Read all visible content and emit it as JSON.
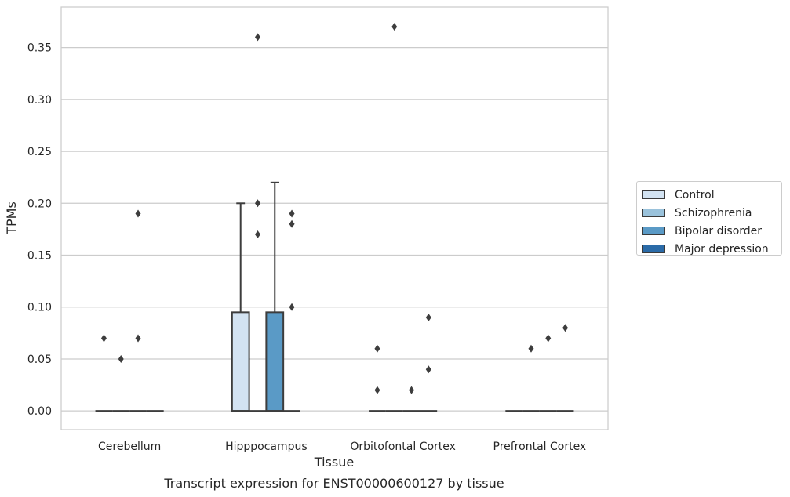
{
  "chart_data": {
    "type": "boxplot",
    "title": "Transcript expression for ENST00000600127 by tissue",
    "xlabel": "Tissue",
    "ylabel": "TPMs",
    "ylim": [
      -0.018,
      0.389
    ],
    "yticks": [
      "0.00",
      "0.05",
      "0.10",
      "0.15",
      "0.20",
      "0.25",
      "0.30",
      "0.35"
    ],
    "ytick_values": [
      0,
      0.05,
      0.1,
      0.15,
      0.2,
      0.25,
      0.3,
      0.35
    ],
    "grid": true,
    "legend_position": "right",
    "categories": [
      "Cerebellum",
      "Hipppocampus",
      "Orbitofontal Cortex",
      "Prefrontal Cortex"
    ],
    "series": [
      {
        "name": "Control",
        "color": "#d3e3f2",
        "boxes": [
          {
            "category": "Cerebellum",
            "q1": 0,
            "median": 0,
            "q3": 0,
            "whislo": 0,
            "whishi": 0,
            "fliers": [
              0.07
            ]
          },
          {
            "category": "Hipppocampus",
            "q1": 0,
            "median": 0,
            "q3": 0.095,
            "whislo": 0,
            "whishi": 0.2,
            "fliers": []
          },
          {
            "category": "Orbitofontal Cortex",
            "q1": 0,
            "median": 0,
            "q3": 0,
            "whislo": 0,
            "whishi": 0,
            "fliers": [
              0.06,
              0.02
            ]
          },
          {
            "category": "Prefrontal Cortex",
            "q1": 0,
            "median": 0,
            "q3": 0,
            "whislo": 0,
            "whishi": 0,
            "fliers": []
          }
        ]
      },
      {
        "name": "Schizophrenia",
        "color": "#9ac2db",
        "boxes": [
          {
            "category": "Cerebellum",
            "q1": 0,
            "median": 0,
            "q3": 0,
            "whislo": 0,
            "whishi": 0,
            "fliers": [
              0.05
            ]
          },
          {
            "category": "Hipppocampus",
            "q1": 0,
            "median": 0,
            "q3": 0,
            "whislo": 0,
            "whishi": 0,
            "fliers": [
              0.36,
              0.2,
              0.17
            ]
          },
          {
            "category": "Orbitofontal Cortex",
            "q1": 0,
            "median": 0,
            "q3": 0,
            "whislo": 0,
            "whishi": 0,
            "fliers": [
              0.37
            ]
          },
          {
            "category": "Prefrontal Cortex",
            "q1": 0,
            "median": 0,
            "q3": 0,
            "whislo": 0,
            "whishi": 0,
            "fliers": [
              0.06
            ]
          }
        ]
      },
      {
        "name": "Bipolar disorder",
        "color": "#5a9ac6",
        "boxes": [
          {
            "category": "Cerebellum",
            "q1": 0,
            "median": 0,
            "q3": 0,
            "whislo": 0,
            "whishi": 0,
            "fliers": [
              0.19,
              0.07
            ]
          },
          {
            "category": "Hipppocampus",
            "q1": 0,
            "median": 0,
            "q3": 0.095,
            "whislo": 0,
            "whishi": 0.22,
            "fliers": []
          },
          {
            "category": "Orbitofontal Cortex",
            "q1": 0,
            "median": 0,
            "q3": 0,
            "whislo": 0,
            "whishi": 0,
            "fliers": [
              0.02
            ]
          },
          {
            "category": "Prefrontal Cortex",
            "q1": 0,
            "median": 0,
            "q3": 0,
            "whislo": 0,
            "whishi": 0,
            "fliers": [
              0.07
            ]
          }
        ]
      },
      {
        "name": "Major depression",
        "color": "#2b6ba8",
        "boxes": [
          {
            "category": "Cerebellum",
            "q1": 0,
            "median": 0,
            "q3": 0,
            "whislo": 0,
            "whishi": 0,
            "fliers": []
          },
          {
            "category": "Hipppocampus",
            "q1": 0,
            "median": 0,
            "q3": 0,
            "whislo": 0,
            "whishi": 0,
            "fliers": [
              0.19,
              0.18,
              0.1
            ]
          },
          {
            "category": "Orbitofontal Cortex",
            "q1": 0,
            "median": 0,
            "q3": 0,
            "whislo": 0,
            "whishi": 0,
            "fliers": [
              0.09,
              0.04
            ]
          },
          {
            "category": "Prefrontal Cortex",
            "q1": 0,
            "median": 0,
            "q3": 0,
            "whislo": 0,
            "whishi": 0,
            "fliers": [
              0.08
            ]
          }
        ]
      }
    ]
  }
}
